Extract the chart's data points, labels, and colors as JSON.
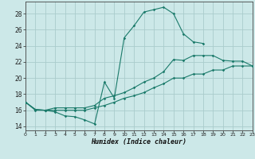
{
  "title": "",
  "xlabel": "Humidex (Indice chaleur)",
  "background_color": "#cce8e8",
  "grid_color": "#aacccc",
  "line_color": "#1a7a6a",
  "xlim": [
    0,
    23
  ],
  "ylim": [
    13.5,
    29.5
  ],
  "xticks": [
    0,
    1,
    2,
    3,
    4,
    5,
    6,
    7,
    8,
    9,
    10,
    11,
    12,
    13,
    14,
    15,
    16,
    17,
    18,
    19,
    20,
    21,
    22,
    23
  ],
  "yticks": [
    14,
    16,
    18,
    20,
    22,
    24,
    26,
    28
  ],
  "line1_x": [
    0,
    1,
    2,
    3,
    4,
    5,
    6,
    7,
    8,
    9,
    10,
    11,
    12,
    13,
    14,
    15,
    16,
    17,
    18
  ],
  "line1_y": [
    17,
    16,
    16,
    15.8,
    15.3,
    15.2,
    14.8,
    14.3,
    19.5,
    17.5,
    25,
    26.5,
    28.2,
    28.5,
    28.8,
    28.0,
    25.5,
    24.5,
    24.3
  ],
  "line2_x": [
    0,
    1,
    2,
    3,
    4,
    5,
    6,
    7,
    8,
    9,
    10,
    11,
    12,
    13,
    14,
    15,
    16,
    17,
    18,
    19,
    20,
    21,
    22,
    23
  ],
  "line2_y": [
    17,
    16.1,
    16,
    16.3,
    16.3,
    16.3,
    16.3,
    16.6,
    17.5,
    17.8,
    18.2,
    18.8,
    19.5,
    20.0,
    20.8,
    22.3,
    22.2,
    22.8,
    22.8,
    22.8,
    22.2,
    22.1,
    22.1,
    21.5
  ],
  "line3_x": [
    0,
    1,
    2,
    3,
    4,
    5,
    6,
    7,
    8,
    9,
    10,
    11,
    12,
    13,
    14,
    15,
    16,
    17,
    18,
    19,
    20,
    21,
    22,
    23
  ],
  "line3_y": [
    17,
    16.1,
    16,
    16,
    16,
    16,
    16,
    16.3,
    16.6,
    17.0,
    17.5,
    17.8,
    18.2,
    18.8,
    19.3,
    20.0,
    20.0,
    20.5,
    20.5,
    21.0,
    21.0,
    21.5,
    21.5,
    21.5
  ]
}
